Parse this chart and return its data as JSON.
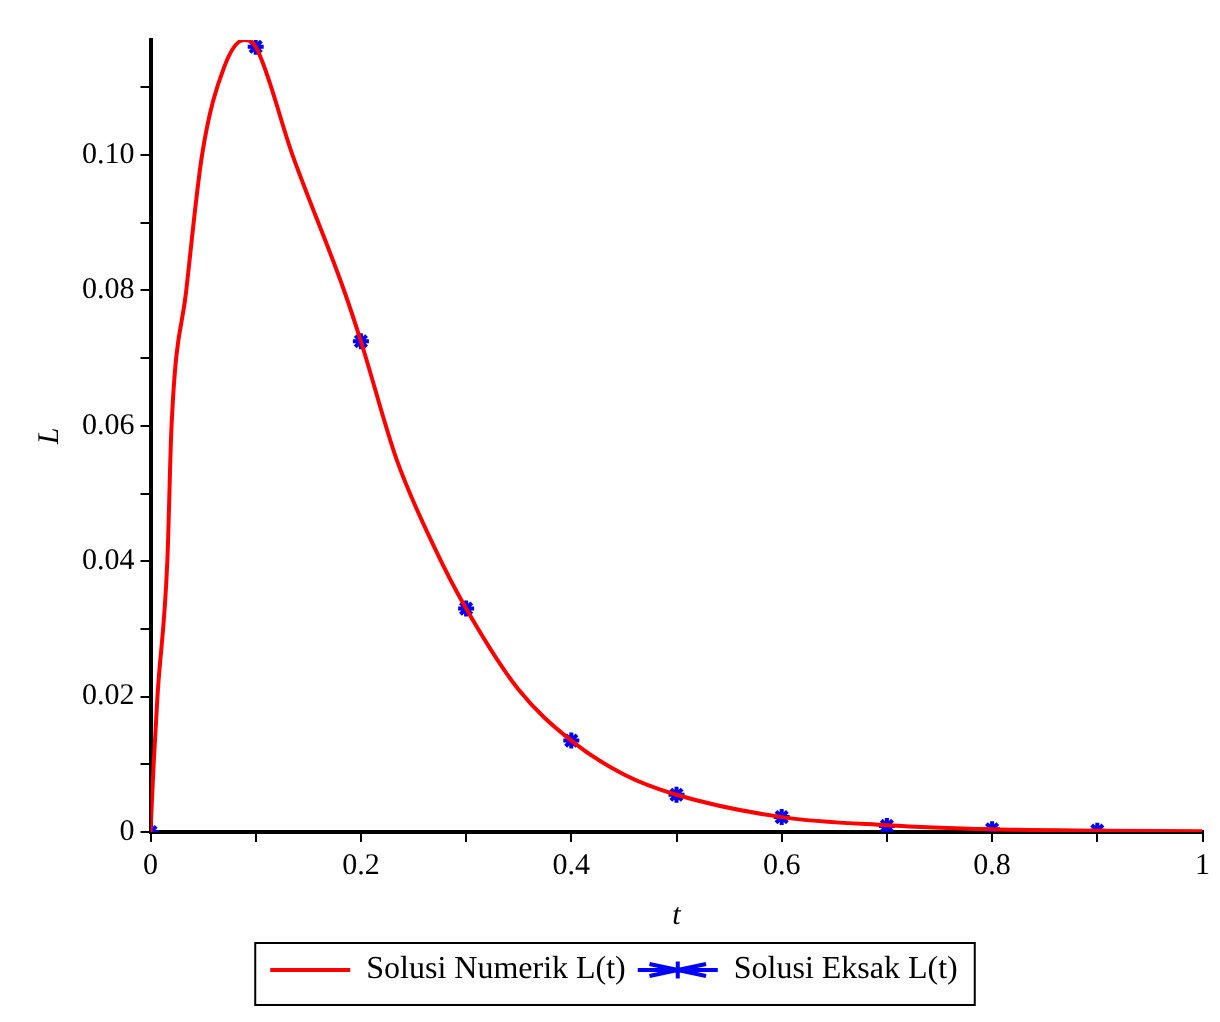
{
  "chart_data": {
    "type": "line",
    "xlabel": "t",
    "ylabel": "L",
    "xlim": [
      0,
      1
    ],
    "ylim": [
      0,
      0.117
    ],
    "xticks": [
      0,
      {
        "value": 0.1,
        "label": null
      },
      0.2,
      {
        "value": 0.3,
        "label": null
      },
      0.4,
      {
        "value": 0.5,
        "label": null
      },
      0.6,
      {
        "value": 0.7,
        "label": null
      },
      0.8,
      {
        "value": 0.9,
        "label": null
      },
      1
    ],
    "yticks": [
      0,
      {
        "value": 0.01,
        "label": null
      },
      0.02,
      {
        "value": 0.03,
        "label": null
      },
      0.04,
      {
        "value": 0.05,
        "label": null
      },
      0.06,
      {
        "value": 0.07,
        "label": null
      },
      0.08,
      {
        "value": 0.09,
        "label": null
      },
      {
        "value": 0.1,
        "label": "0.10"
      },
      {
        "value": 0.11,
        "label": null
      }
    ],
    "grid": false,
    "legend": "bottom",
    "series": [
      {
        "name": "Solusi Numerik L(t)",
        "color": "#ff0000",
        "marker": "none",
        "line_style": "solid",
        "x": [
          0,
          0.003,
          0.0066,
          0.016,
          0.02,
          0.034,
          0.049,
          0.07,
          0.089,
          0.1,
          0.135,
          0.184,
          0.2,
          0.234,
          0.27,
          0.3,
          0.35,
          0.4,
          0.45,
          0.5,
          0.6,
          0.7,
          0.8,
          0.9,
          1
        ],
        "values": [
          0,
          0.01,
          0.02,
          0.04,
          0.06,
          0.08,
          0.1,
          0.113,
          0.117,
          0.116,
          0.1,
          0.08,
          0.0725,
          0.055,
          0.042,
          0.033,
          0.021,
          0.0135,
          0.0085,
          0.0055,
          0.0022,
          0.001,
          0.0004,
          0.0002,
          0.0001
        ]
      },
      {
        "name": "Solusi Eksak L(t)",
        "type": "scatter",
        "color": "#0000ff",
        "marker": "cross",
        "x": [
          0,
          0.1,
          0.2,
          0.3,
          0.4,
          0.5,
          0.6,
          0.7,
          0.8,
          0.9
        ],
        "values": [
          0,
          0.116,
          0.0725,
          0.033,
          0.0135,
          0.0055,
          0.0022,
          0.0009,
          0.0004,
          0.0002
        ]
      }
    ]
  }
}
